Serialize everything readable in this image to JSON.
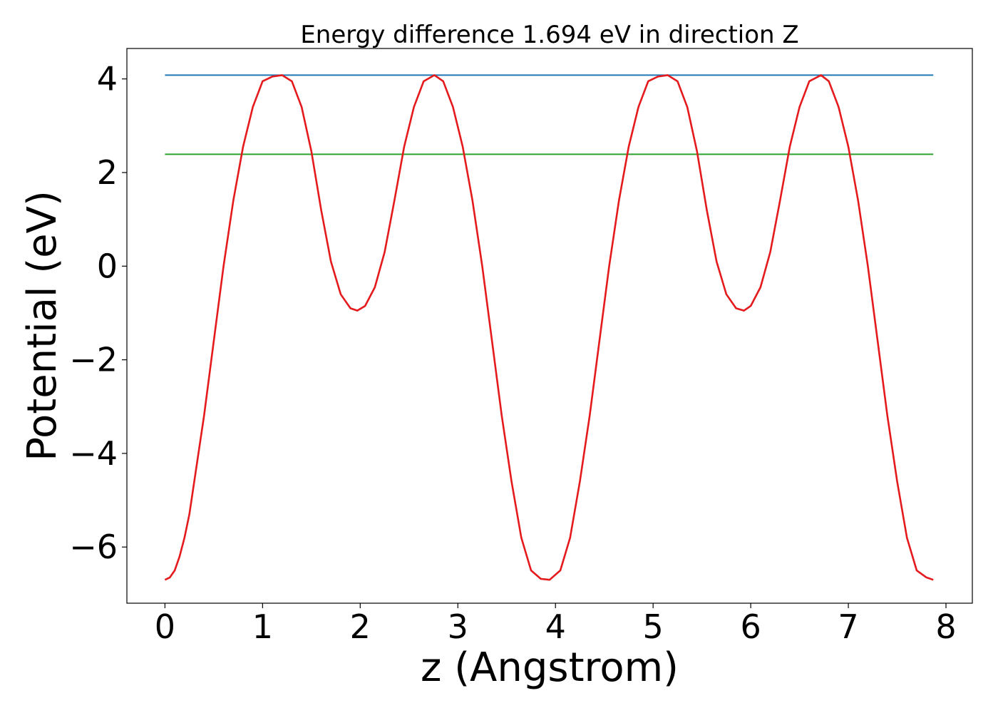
{
  "chart_data": {
    "type": "line",
    "title": "Energy difference 1.694 eV in direction Z",
    "xlabel": "z (Angstrom)",
    "ylabel": "Potential (eV)",
    "xlim": [
      -0.39,
      8.27
    ],
    "ylim": [
      -7.2,
      4.65
    ],
    "xticks": [
      0,
      1,
      2,
      3,
      4,
      5,
      6,
      7,
      8
    ],
    "yticks": [
      -6,
      -4,
      -2,
      0,
      2,
      4
    ],
    "xtick_labels": [
      "0",
      "1",
      "2",
      "3",
      "4",
      "5",
      "6",
      "7",
      "8"
    ],
    "ytick_labels": [
      "−6",
      "−4",
      "−2",
      "0",
      "2",
      "4"
    ],
    "grid": false,
    "legend": "none",
    "series": [
      {
        "color": "#1f77b4",
        "x": [
          0,
          7.87
        ],
        "y": [
          4.08,
          4.08
        ]
      },
      {
        "color": "#2ca02c",
        "x": [
          0,
          7.87
        ],
        "y": [
          2.39,
          2.39
        ]
      },
      {
        "color": "#e41a1c",
        "x": [
          0.0,
          0.05,
          0.1,
          0.15,
          0.2,
          0.25,
          0.3,
          0.4,
          0.5,
          0.6,
          0.7,
          0.8,
          0.9,
          1.0,
          1.1,
          1.2,
          1.3,
          1.4,
          1.5,
          1.6,
          1.7,
          1.8,
          1.9,
          1.97,
          2.05,
          2.15,
          2.25,
          2.35,
          2.45,
          2.55,
          2.65,
          2.76,
          2.85,
          2.95,
          3.05,
          3.15,
          3.25,
          3.35,
          3.45,
          3.55,
          3.65,
          3.75,
          3.85,
          3.94,
          4.05,
          4.15,
          4.25,
          4.35,
          4.45,
          4.55,
          4.65,
          4.75,
          4.85,
          4.95,
          5.05,
          5.15,
          5.25,
          5.35,
          5.45,
          5.55,
          5.65,
          5.75,
          5.85,
          5.93,
          6.0,
          6.1,
          6.2,
          6.3,
          6.4,
          6.5,
          6.6,
          6.72,
          6.8,
          6.9,
          7.0,
          7.1,
          7.2,
          7.3,
          7.4,
          7.5,
          7.6,
          7.7,
          7.8,
          7.87
        ],
        "y": [
          -6.7,
          -6.65,
          -6.5,
          -6.2,
          -5.8,
          -5.3,
          -4.6,
          -3.2,
          -1.6,
          0.0,
          1.4,
          2.55,
          3.4,
          3.95,
          4.05,
          4.08,
          3.95,
          3.4,
          2.45,
          1.2,
          0.1,
          -0.6,
          -0.9,
          -0.95,
          -0.85,
          -0.45,
          0.3,
          1.4,
          2.55,
          3.4,
          3.95,
          4.08,
          3.95,
          3.4,
          2.55,
          1.4,
          0.0,
          -1.6,
          -3.2,
          -4.6,
          -5.8,
          -6.5,
          -6.68,
          -6.7,
          -6.5,
          -5.8,
          -4.6,
          -3.2,
          -1.6,
          0.0,
          1.4,
          2.55,
          3.4,
          3.95,
          4.05,
          4.08,
          3.95,
          3.4,
          2.45,
          1.2,
          0.1,
          -0.6,
          -0.9,
          -0.95,
          -0.85,
          -0.45,
          0.3,
          1.4,
          2.55,
          3.4,
          3.95,
          4.08,
          3.95,
          3.4,
          2.55,
          1.4,
          0.0,
          -1.6,
          -3.2,
          -4.6,
          -5.8,
          -6.5,
          -6.65,
          -6.7
        ]
      }
    ]
  }
}
